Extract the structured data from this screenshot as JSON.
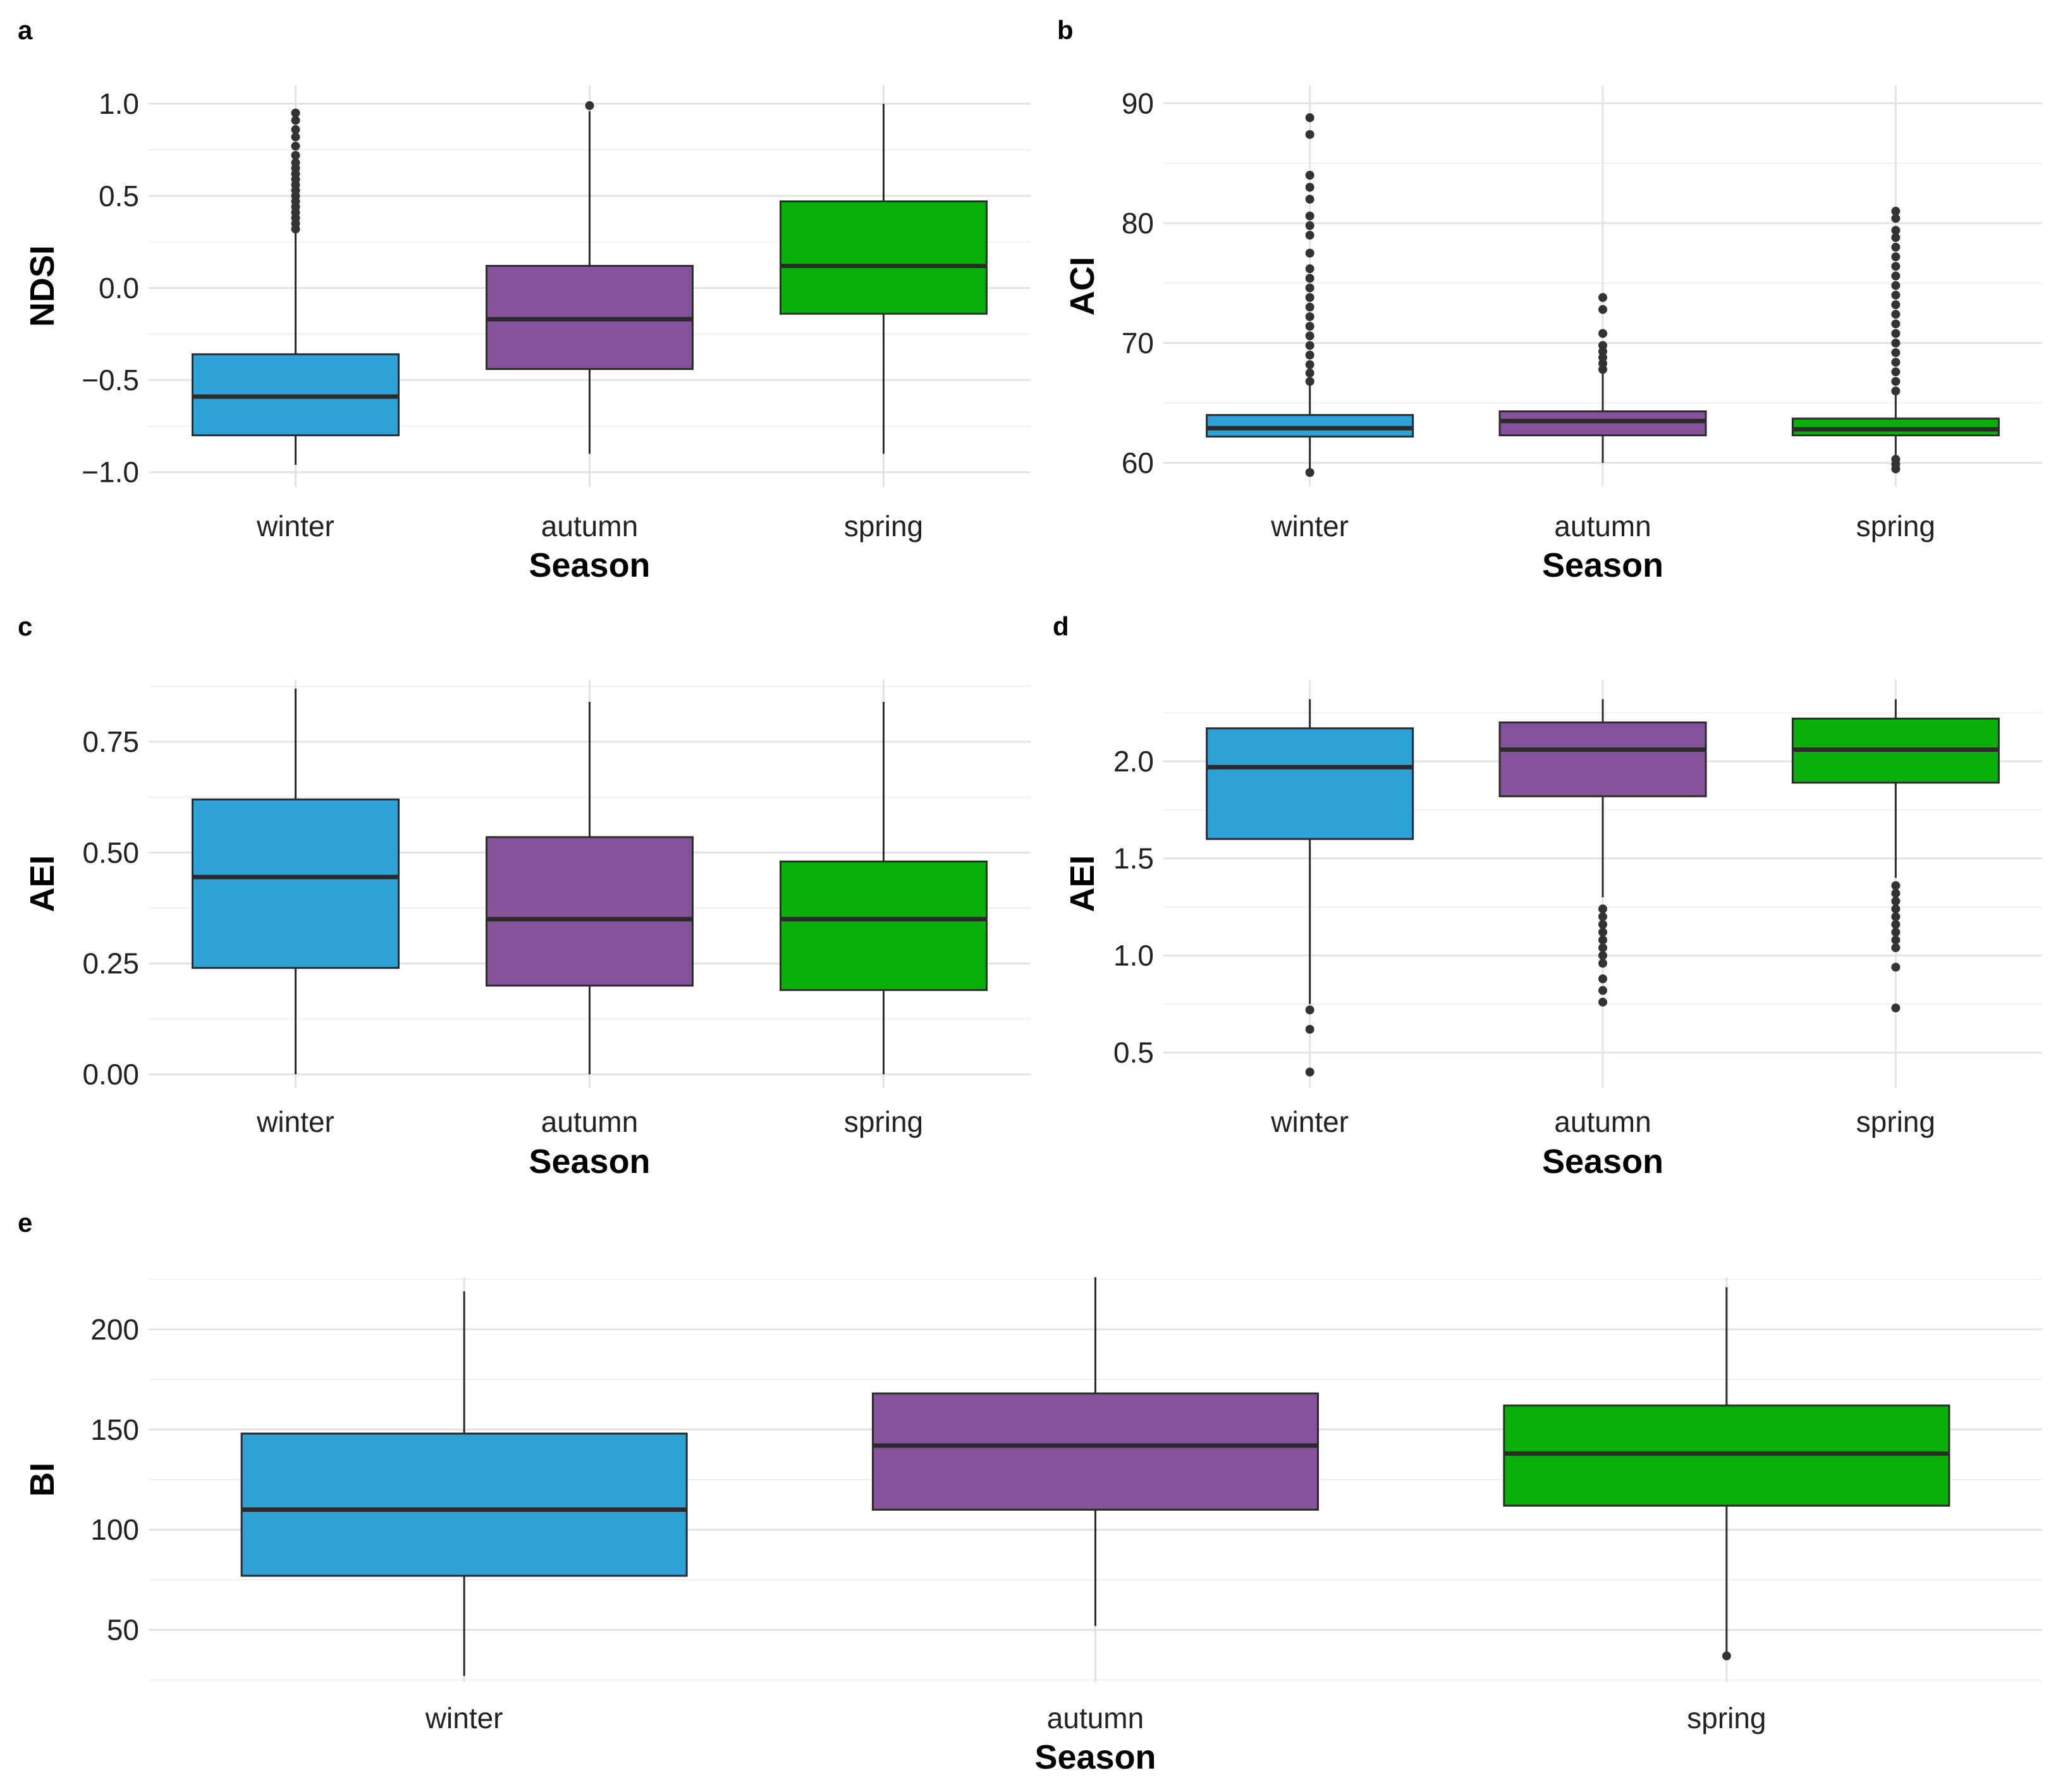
{
  "chart_data": [
    {
      "panel": "a",
      "type": "boxplot",
      "xlabel": "Season",
      "ylabel": "NDSI",
      "categories": [
        "winter",
        "autumn",
        "spring"
      ],
      "colors": [
        "#2ea2d7",
        "#87529c",
        "#0ab00a"
      ],
      "ylim": [
        -1.08,
        1.1
      ],
      "yticks": [
        -1.0,
        -0.5,
        0.0,
        0.5,
        1.0
      ],
      "ytick_labels": [
        "−1.0",
        "−0.5",
        "0.0",
        "0.5",
        "1.0"
      ],
      "boxes": [
        {
          "whisker_low": -0.96,
          "q1": -0.8,
          "median": -0.59,
          "q3": -0.36,
          "whisker_high": 0.3,
          "outliers": [
            0.32,
            0.35,
            0.38,
            0.41,
            0.44,
            0.47,
            0.5,
            0.53,
            0.56,
            0.59,
            0.62,
            0.65,
            0.68,
            0.72,
            0.77,
            0.82,
            0.86,
            0.91,
            0.95
          ]
        },
        {
          "whisker_low": -0.9,
          "q1": -0.44,
          "median": -0.17,
          "q3": 0.12,
          "whisker_high": 0.96,
          "outliers": [
            0.99
          ]
        },
        {
          "whisker_low": -0.9,
          "q1": -0.14,
          "median": 0.12,
          "q3": 0.47,
          "whisker_high": 1.0,
          "outliers": []
        }
      ]
    },
    {
      "panel": "b",
      "type": "boxplot",
      "xlabel": "Season",
      "ylabel": "ACI",
      "categories": [
        "winter",
        "autumn",
        "spring"
      ],
      "colors": [
        "#2ea2d7",
        "#87529c",
        "#0ab00a"
      ],
      "ylim": [
        58,
        91.5
      ],
      "yticks": [
        60,
        70,
        80,
        90
      ],
      "ytick_labels": [
        "60",
        "70",
        "80",
        "90"
      ],
      "boxes": [
        {
          "whisker_low": 59.5,
          "q1": 62.2,
          "median": 62.9,
          "q3": 64.0,
          "whisker_high": 66.5,
          "outliers": [
            59.2,
            66.8,
            67.5,
            68.2,
            69,
            69.8,
            70.6,
            71.4,
            72.2,
            73,
            73.8,
            74.6,
            75.4,
            76.2,
            77.5,
            79,
            79.8,
            80.6,
            82,
            83,
            84,
            87.4,
            88.8
          ]
        },
        {
          "whisker_low": 60.0,
          "q1": 62.3,
          "median": 63.5,
          "q3": 64.3,
          "whisker_high": 67.5,
          "outliers": [
            67.8,
            68.3,
            68.8,
            69.3,
            69.8,
            70.8,
            72.8,
            73.8
          ]
        },
        {
          "whisker_low": 60.5,
          "q1": 62.3,
          "median": 62.8,
          "q3": 63.7,
          "whisker_high": 65.8,
          "outliers": [
            59.5,
            59.9,
            60.3,
            66,
            66.8,
            67.6,
            68.4,
            69.2,
            70,
            70.8,
            71.6,
            72.4,
            73.2,
            74,
            74.8,
            75.6,
            76.4,
            77.2,
            78,
            78.8,
            79.4,
            80.4,
            81
          ]
        }
      ]
    },
    {
      "panel": "c",
      "type": "boxplot",
      "xlabel": "Season",
      "ylabel": "AEI",
      "categories": [
        "winter",
        "autumn",
        "spring"
      ],
      "colors": [
        "#2ea2d7",
        "#87529c",
        "#0ab00a"
      ],
      "ylim": [
        -0.03,
        0.89
      ],
      "yticks": [
        0.0,
        0.25,
        0.5,
        0.75
      ],
      "ytick_labels": [
        "0.00",
        "0.25",
        "0.50",
        "0.75"
      ],
      "boxes": [
        {
          "whisker_low": 0.0,
          "q1": 0.24,
          "median": 0.445,
          "q3": 0.62,
          "whisker_high": 0.87,
          "outliers": []
        },
        {
          "whisker_low": 0.0,
          "q1": 0.2,
          "median": 0.35,
          "q3": 0.535,
          "whisker_high": 0.84,
          "outliers": []
        },
        {
          "whisker_low": 0.0,
          "q1": 0.19,
          "median": 0.35,
          "q3": 0.48,
          "whisker_high": 0.84,
          "outliers": []
        }
      ]
    },
    {
      "panel": "d",
      "type": "boxplot",
      "xlabel": "Season",
      "ylabel": "AEI",
      "categories": [
        "winter",
        "autumn",
        "spring"
      ],
      "colors": [
        "#2ea2d7",
        "#87529c",
        "#0ab00a"
      ],
      "ylim": [
        0.32,
        2.42
      ],
      "yticks": [
        0.5,
        1.0,
        1.5,
        2.0
      ],
      "ytick_labels": [
        "0.5",
        "1.0",
        "1.5",
        "2.0"
      ],
      "boxes": [
        {
          "whisker_low": 0.75,
          "q1": 1.6,
          "median": 1.97,
          "q3": 2.17,
          "whisker_high": 2.32,
          "outliers": [
            0.4,
            0.62,
            0.72
          ]
        },
        {
          "whisker_low": 1.3,
          "q1": 1.82,
          "median": 2.06,
          "q3": 2.2,
          "whisker_high": 2.32,
          "outliers": [
            0.76,
            0.82,
            0.88,
            0.96,
            1.0,
            1.04,
            1.08,
            1.12,
            1.16,
            1.2,
            1.24
          ]
        },
        {
          "whisker_low": 1.4,
          "q1": 1.89,
          "median": 2.06,
          "q3": 2.22,
          "whisker_high": 2.32,
          "outliers": [
            0.73,
            0.94,
            1.04,
            1.08,
            1.12,
            1.16,
            1.2,
            1.24,
            1.28,
            1.32,
            1.36
          ]
        }
      ]
    },
    {
      "panel": "e",
      "type": "boxplot",
      "xlabel": "Season",
      "ylabel": "BI",
      "categories": [
        "winter",
        "autumn",
        "spring"
      ],
      "colors": [
        "#2ea2d7",
        "#87529c",
        "#0ab00a"
      ],
      "ylim": [
        24,
        226
      ],
      "yticks": [
        50,
        100,
        150,
        200
      ],
      "ytick_labels": [
        "50",
        "100",
        "150",
        "200"
      ],
      "boxes": [
        {
          "whisker_low": 27,
          "q1": 77,
          "median": 110,
          "q3": 148,
          "whisker_high": 219,
          "outliers": []
        },
        {
          "whisker_low": 52,
          "q1": 110,
          "median": 142,
          "q3": 168,
          "whisker_high": 226,
          "outliers": []
        },
        {
          "whisker_low": 38,
          "q1": 112,
          "median": 138,
          "q3": 162,
          "whisker_high": 221,
          "outliers": [
            37
          ]
        }
      ]
    }
  ]
}
